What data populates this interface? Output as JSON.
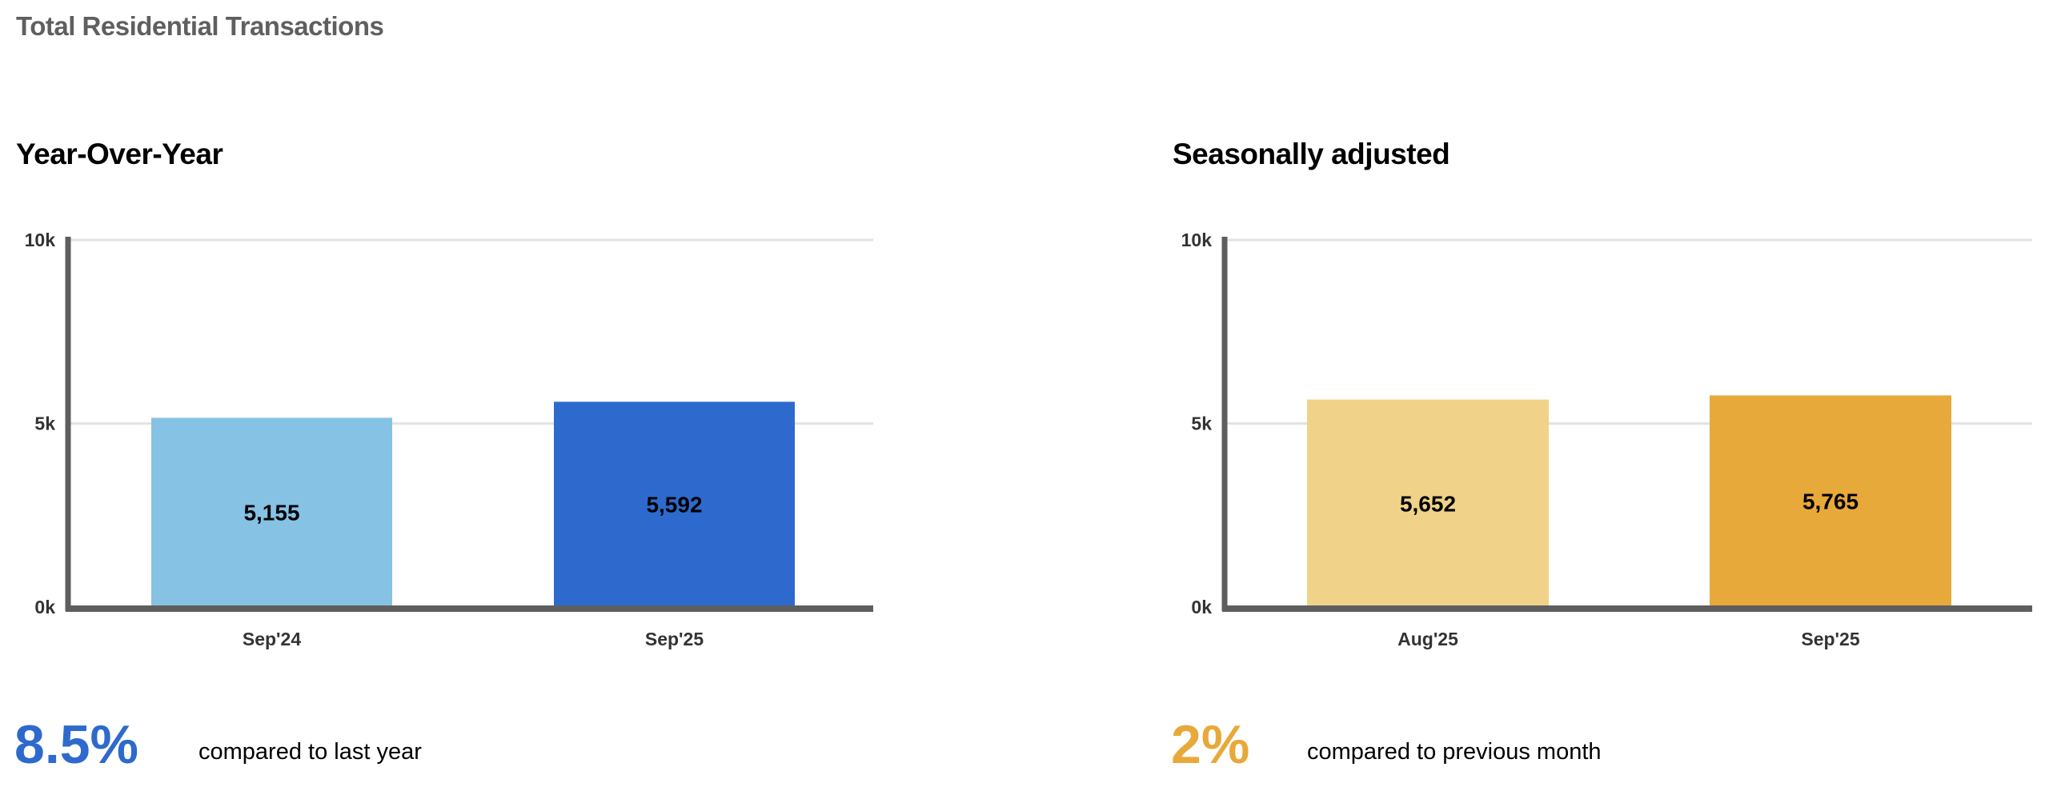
{
  "title": "Total Residential Transactions",
  "chart_data": [
    {
      "type": "bar",
      "title": "Year-Over-Year",
      "categories": [
        "Sep'24",
        "Sep'25"
      ],
      "values": [
        5155,
        5592
      ],
      "value_labels": [
        "5,155",
        "5,592"
      ],
      "colors": [
        "#85c2e4",
        "#2e6acd"
      ],
      "ylim": [
        0,
        10000
      ],
      "yticks": [
        {
          "v": 0,
          "label": "0k"
        },
        {
          "v": 5000,
          "label": "5k"
        },
        {
          "v": 10000,
          "label": "10k"
        }
      ],
      "grid": true,
      "change": {
        "value": "8.5%",
        "text": "compared to last year",
        "color": "#2e6acd"
      }
    },
    {
      "type": "bar",
      "title": "Seasonally adjusted",
      "categories": [
        "Aug'25",
        "Sep'25"
      ],
      "values": [
        5652,
        5765
      ],
      "value_labels": [
        "5,652",
        "5,765"
      ],
      "colors": [
        "#f0d388",
        "#e8a93b"
      ],
      "ylim": [
        0,
        10000
      ],
      "yticks": [
        {
          "v": 0,
          "label": "0k"
        },
        {
          "v": 5000,
          "label": "5k"
        },
        {
          "v": 10000,
          "label": "10k"
        }
      ],
      "grid": true,
      "change": {
        "value": "2%",
        "text": "compared to previous month",
        "color": "#e8a93b"
      }
    }
  ]
}
